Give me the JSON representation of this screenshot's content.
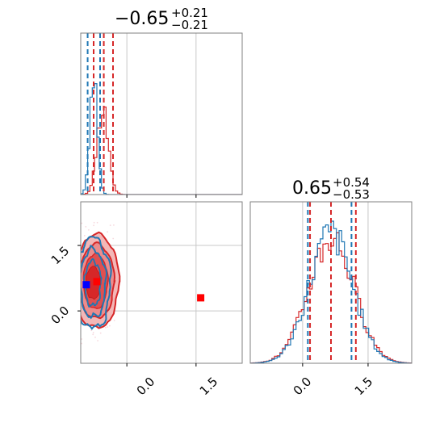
{
  "chart_data": [
    {
      "type": "histogram",
      "panel": "marginal-param-1",
      "title": {
        "value": "−0.65",
        "upper": "+0.21",
        "lower": "−0.21"
      },
      "xlim": [
        -1.0,
        2.5
      ],
      "grid": true,
      "series": [
        {
          "color": "#1f77b4",
          "quantiles": [
            -0.85,
            -0.72,
            -0.58
          ]
        },
        {
          "color": "#d62728",
          "quantiles": [
            -0.72,
            -0.5,
            -0.3
          ]
        }
      ]
    },
    {
      "type": "histogram",
      "panel": "marginal-param-2",
      "title": {
        "value": "0.65",
        "upper": "+0.54",
        "lower": "−0.53"
      },
      "xlim": [
        -1.2,
        2.5
      ],
      "xticks": [
        "0.0",
        "1.5"
      ],
      "grid": true,
      "series": [
        {
          "color": "#1f77b4",
          "quantiles": [
            0.12,
            0.65,
            1.12
          ]
        },
        {
          "color": "#d62728",
          "quantiles": [
            0.17,
            0.65,
            1.22
          ]
        }
      ]
    },
    {
      "type": "contour",
      "panel": "joint-param-1-param-2",
      "xlim": [
        -1.0,
        2.5
      ],
      "ylim": [
        -1.2,
        2.5
      ],
      "xticks": [
        "0.0",
        "1.5"
      ],
      "yticks": [
        "0.0",
        "1.5"
      ],
      "grid": true,
      "markers": [
        {
          "color": "#0000ff",
          "x": -0.88,
          "y": 0.6
        },
        {
          "color": "#ff0000",
          "x": -0.65,
          "y": 0.67
        },
        {
          "color": "#ff0000",
          "x": 1.6,
          "y": 0.3
        }
      ]
    }
  ],
  "colors": {
    "blue": "#1f77b4",
    "red": "#d62728",
    "spine": "#808080",
    "grid": "#c8c8c8"
  }
}
